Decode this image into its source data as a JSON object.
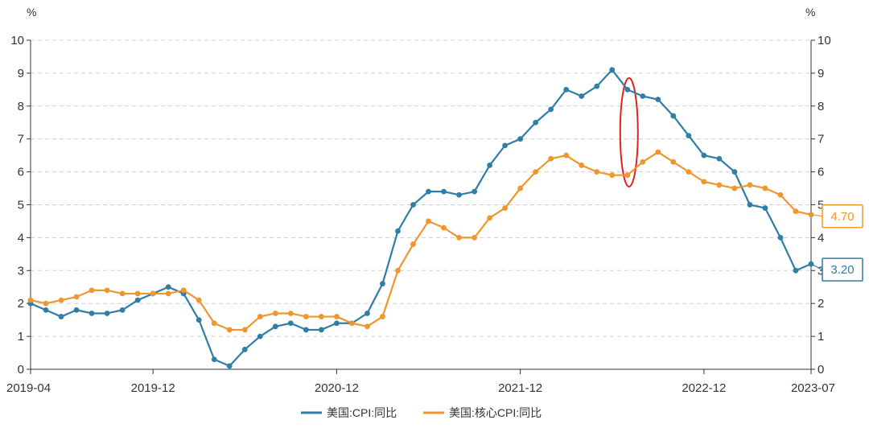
{
  "chart_data": {
    "type": "line",
    "left_unit": "%",
    "right_unit": "%",
    "ylim": [
      0,
      10
    ],
    "y_ticks": [
      "0",
      "1",
      "2",
      "3",
      "4",
      "5",
      "6",
      "7",
      "8",
      "9",
      "10"
    ],
    "x_ticks": [
      {
        "index": 0,
        "label": "2019-04"
      },
      {
        "index": 8,
        "label": "2019-12"
      },
      {
        "index": 20,
        "label": "2020-12"
      },
      {
        "index": 32,
        "label": "2021-12"
      },
      {
        "index": 44,
        "label": "2022-12"
      },
      {
        "index": 51,
        "label": "2023-07"
      }
    ],
    "x": [
      "2019-04",
      "2019-05",
      "2019-06",
      "2019-07",
      "2019-08",
      "2019-09",
      "2019-10",
      "2019-11",
      "2019-12",
      "2020-01",
      "2020-02",
      "2020-03",
      "2020-04",
      "2020-05",
      "2020-06",
      "2020-07",
      "2020-08",
      "2020-09",
      "2020-10",
      "2020-11",
      "2020-12",
      "2021-01",
      "2021-02",
      "2021-03",
      "2021-04",
      "2021-05",
      "2021-06",
      "2021-07",
      "2021-08",
      "2021-09",
      "2021-10",
      "2021-11",
      "2021-12",
      "2022-01",
      "2022-02",
      "2022-03",
      "2022-04",
      "2022-05",
      "2022-06",
      "2022-07",
      "2022-08",
      "2022-09",
      "2022-10",
      "2022-11",
      "2022-12",
      "2023-01",
      "2023-02",
      "2023-03",
      "2023-04",
      "2023-05",
      "2023-06",
      "2023-07"
    ],
    "series": [
      {
        "name": "美国:CPI:同比",
        "color": "#2e7ea6",
        "values": [
          2.0,
          1.8,
          1.6,
          1.8,
          1.7,
          1.7,
          1.8,
          2.1,
          2.3,
          2.5,
          2.3,
          1.5,
          0.3,
          0.1,
          0.6,
          1.0,
          1.3,
          1.4,
          1.2,
          1.2,
          1.4,
          1.4,
          1.7,
          2.6,
          4.2,
          5.0,
          5.4,
          5.4,
          5.3,
          5.4,
          6.2,
          6.8,
          7.0,
          7.5,
          7.9,
          8.5,
          8.3,
          8.6,
          9.1,
          8.5,
          8.3,
          8.2,
          7.7,
          7.1,
          6.5,
          6.4,
          6.0,
          5.0,
          4.9,
          4.0,
          3.0,
          3.2
        ],
        "end_label": "3.20"
      },
      {
        "name": "美国:核心CPI:同比",
        "color": "#f0962e",
        "values": [
          2.1,
          2.0,
          2.1,
          2.2,
          2.4,
          2.4,
          2.3,
          2.3,
          2.3,
          2.3,
          2.4,
          2.1,
          1.4,
          1.2,
          1.2,
          1.6,
          1.7,
          1.7,
          1.6,
          1.6,
          1.6,
          1.4,
          1.3,
          1.6,
          3.0,
          3.8,
          4.5,
          4.3,
          4.0,
          4.0,
          4.6,
          4.9,
          5.5,
          6.0,
          6.4,
          6.5,
          6.2,
          6.0,
          5.9,
          5.9,
          6.3,
          6.6,
          6.3,
          6.0,
          5.7,
          5.6,
          5.5,
          5.6,
          5.5,
          5.3,
          4.8,
          4.7
        ],
        "end_label": "4.70"
      }
    ],
    "highlight_index": 39,
    "highlight_color": "#e3211c",
    "legend_position": "bottom"
  }
}
